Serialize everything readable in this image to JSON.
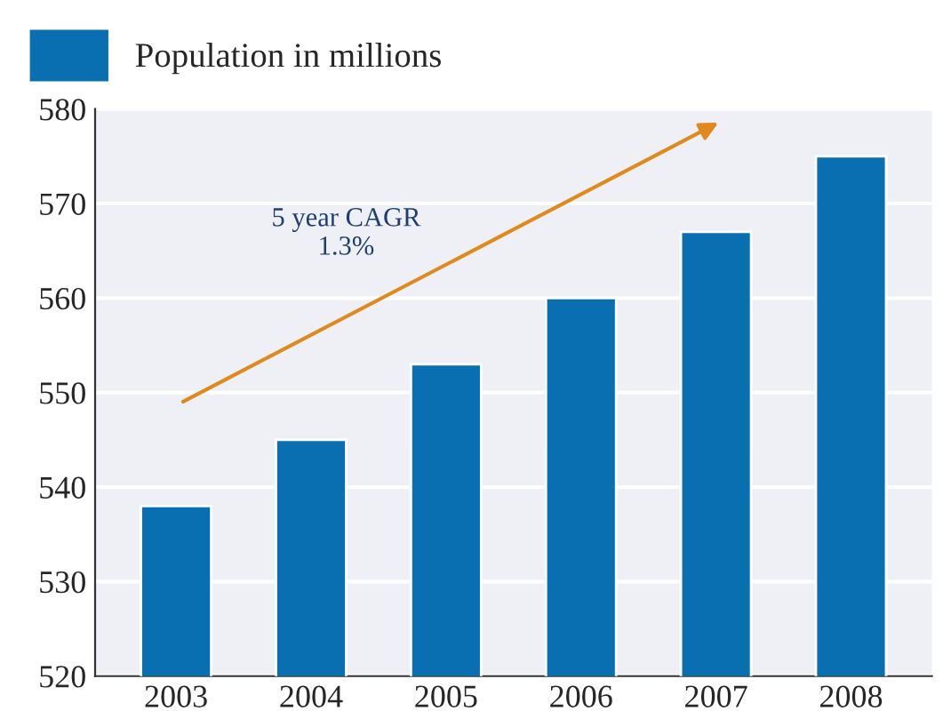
{
  "chart_data": {
    "type": "bar",
    "categories": [
      "2003",
      "2004",
      "2005",
      "2006",
      "2007",
      "2008"
    ],
    "series": [
      {
        "name": "Population in millions",
        "color": "#0a6fb0",
        "values": [
          538,
          545,
          553,
          560,
          567,
          575
        ]
      }
    ],
    "ylim": [
      520,
      580
    ],
    "yticks": [
      520,
      530,
      540,
      550,
      560,
      570,
      580
    ],
    "grid": "y",
    "legend": "top left",
    "annotations": [
      "5 year CAGR\n1.3%"
    ]
  }
}
